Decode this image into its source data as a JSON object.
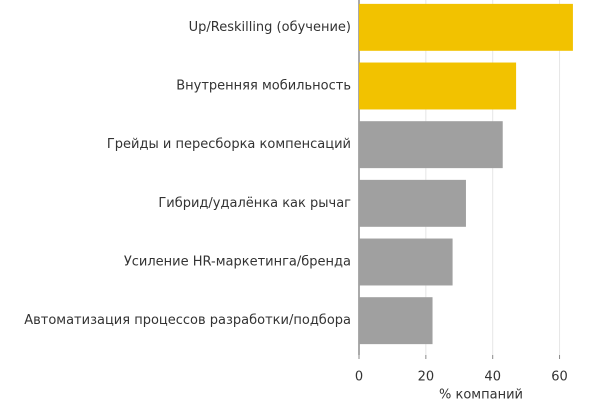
{
  "chart_data": {
    "type": "barh",
    "categories": [
      "Up/Reskilling (обучение)",
      "Внутренняя мобильность",
      "Грейды и пересборка компенсаций",
      "Гибрид/удалёнка как рычаг",
      "Усиление HR-маркетинга/бренда",
      "Автоматизация процессов разработки/подбора"
    ],
    "values": [
      64,
      47,
      43,
      32,
      28,
      22
    ],
    "colors": [
      "#f2c200",
      "#f2c200",
      "#a0a0a0",
      "#a0a0a0",
      "#a0a0a0",
      "#a0a0a0"
    ],
    "xlabel": "% компаний",
    "xlim": [
      0,
      73
    ],
    "xticks": [
      0,
      20,
      40,
      60
    ],
    "grid": true
  }
}
